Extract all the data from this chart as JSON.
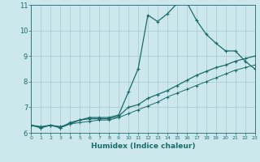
{
  "xlabel": "Humidex (Indice chaleur)",
  "bg_color": "#cce8ec",
  "grid_color": "#aacdd4",
  "line_color": "#1a6b6b",
  "xlim": [
    0,
    23
  ],
  "ylim": [
    6,
    11
  ],
  "yticks": [
    6,
    7,
    8,
    9,
    10,
    11
  ],
  "xticks": [
    0,
    1,
    2,
    3,
    4,
    5,
    6,
    7,
    8,
    9,
    10,
    11,
    12,
    13,
    14,
    15,
    16,
    17,
    18,
    19,
    20,
    21,
    22,
    23
  ],
  "curve1_x": [
    0,
    1,
    2,
    3,
    4,
    5,
    6,
    7,
    8,
    9,
    10,
    11,
    12,
    13,
    14,
    15,
    16,
    17,
    18,
    19,
    20,
    21,
    22,
    23
  ],
  "curve1_y": [
    6.3,
    6.2,
    6.3,
    6.2,
    6.4,
    6.5,
    6.6,
    6.6,
    6.6,
    6.7,
    7.6,
    8.5,
    10.6,
    10.35,
    10.65,
    11.05,
    11.1,
    10.4,
    9.85,
    9.5,
    9.2,
    9.2,
    8.8,
    8.5
  ],
  "curve2_x": [
    0,
    1,
    2,
    3,
    4,
    5,
    6,
    7,
    8,
    9,
    10,
    11,
    12,
    13,
    14,
    15,
    16,
    17,
    18,
    19,
    20,
    21,
    22,
    23
  ],
  "curve2_y": [
    6.3,
    6.2,
    6.3,
    6.2,
    6.35,
    6.5,
    6.55,
    6.55,
    6.55,
    6.65,
    7.0,
    7.1,
    7.35,
    7.5,
    7.65,
    7.85,
    8.05,
    8.25,
    8.4,
    8.55,
    8.65,
    8.8,
    8.9,
    9.0
  ],
  "curve3_x": [
    0,
    1,
    2,
    3,
    4,
    5,
    6,
    7,
    8,
    9,
    10,
    11,
    12,
    13,
    14,
    15,
    16,
    17,
    18,
    19,
    20,
    21,
    22,
    23
  ],
  "curve3_y": [
    6.3,
    6.25,
    6.3,
    6.25,
    6.35,
    6.4,
    6.45,
    6.5,
    6.5,
    6.6,
    6.75,
    6.9,
    7.05,
    7.2,
    7.4,
    7.55,
    7.7,
    7.85,
    8.0,
    8.15,
    8.3,
    8.45,
    8.55,
    8.65
  ]
}
